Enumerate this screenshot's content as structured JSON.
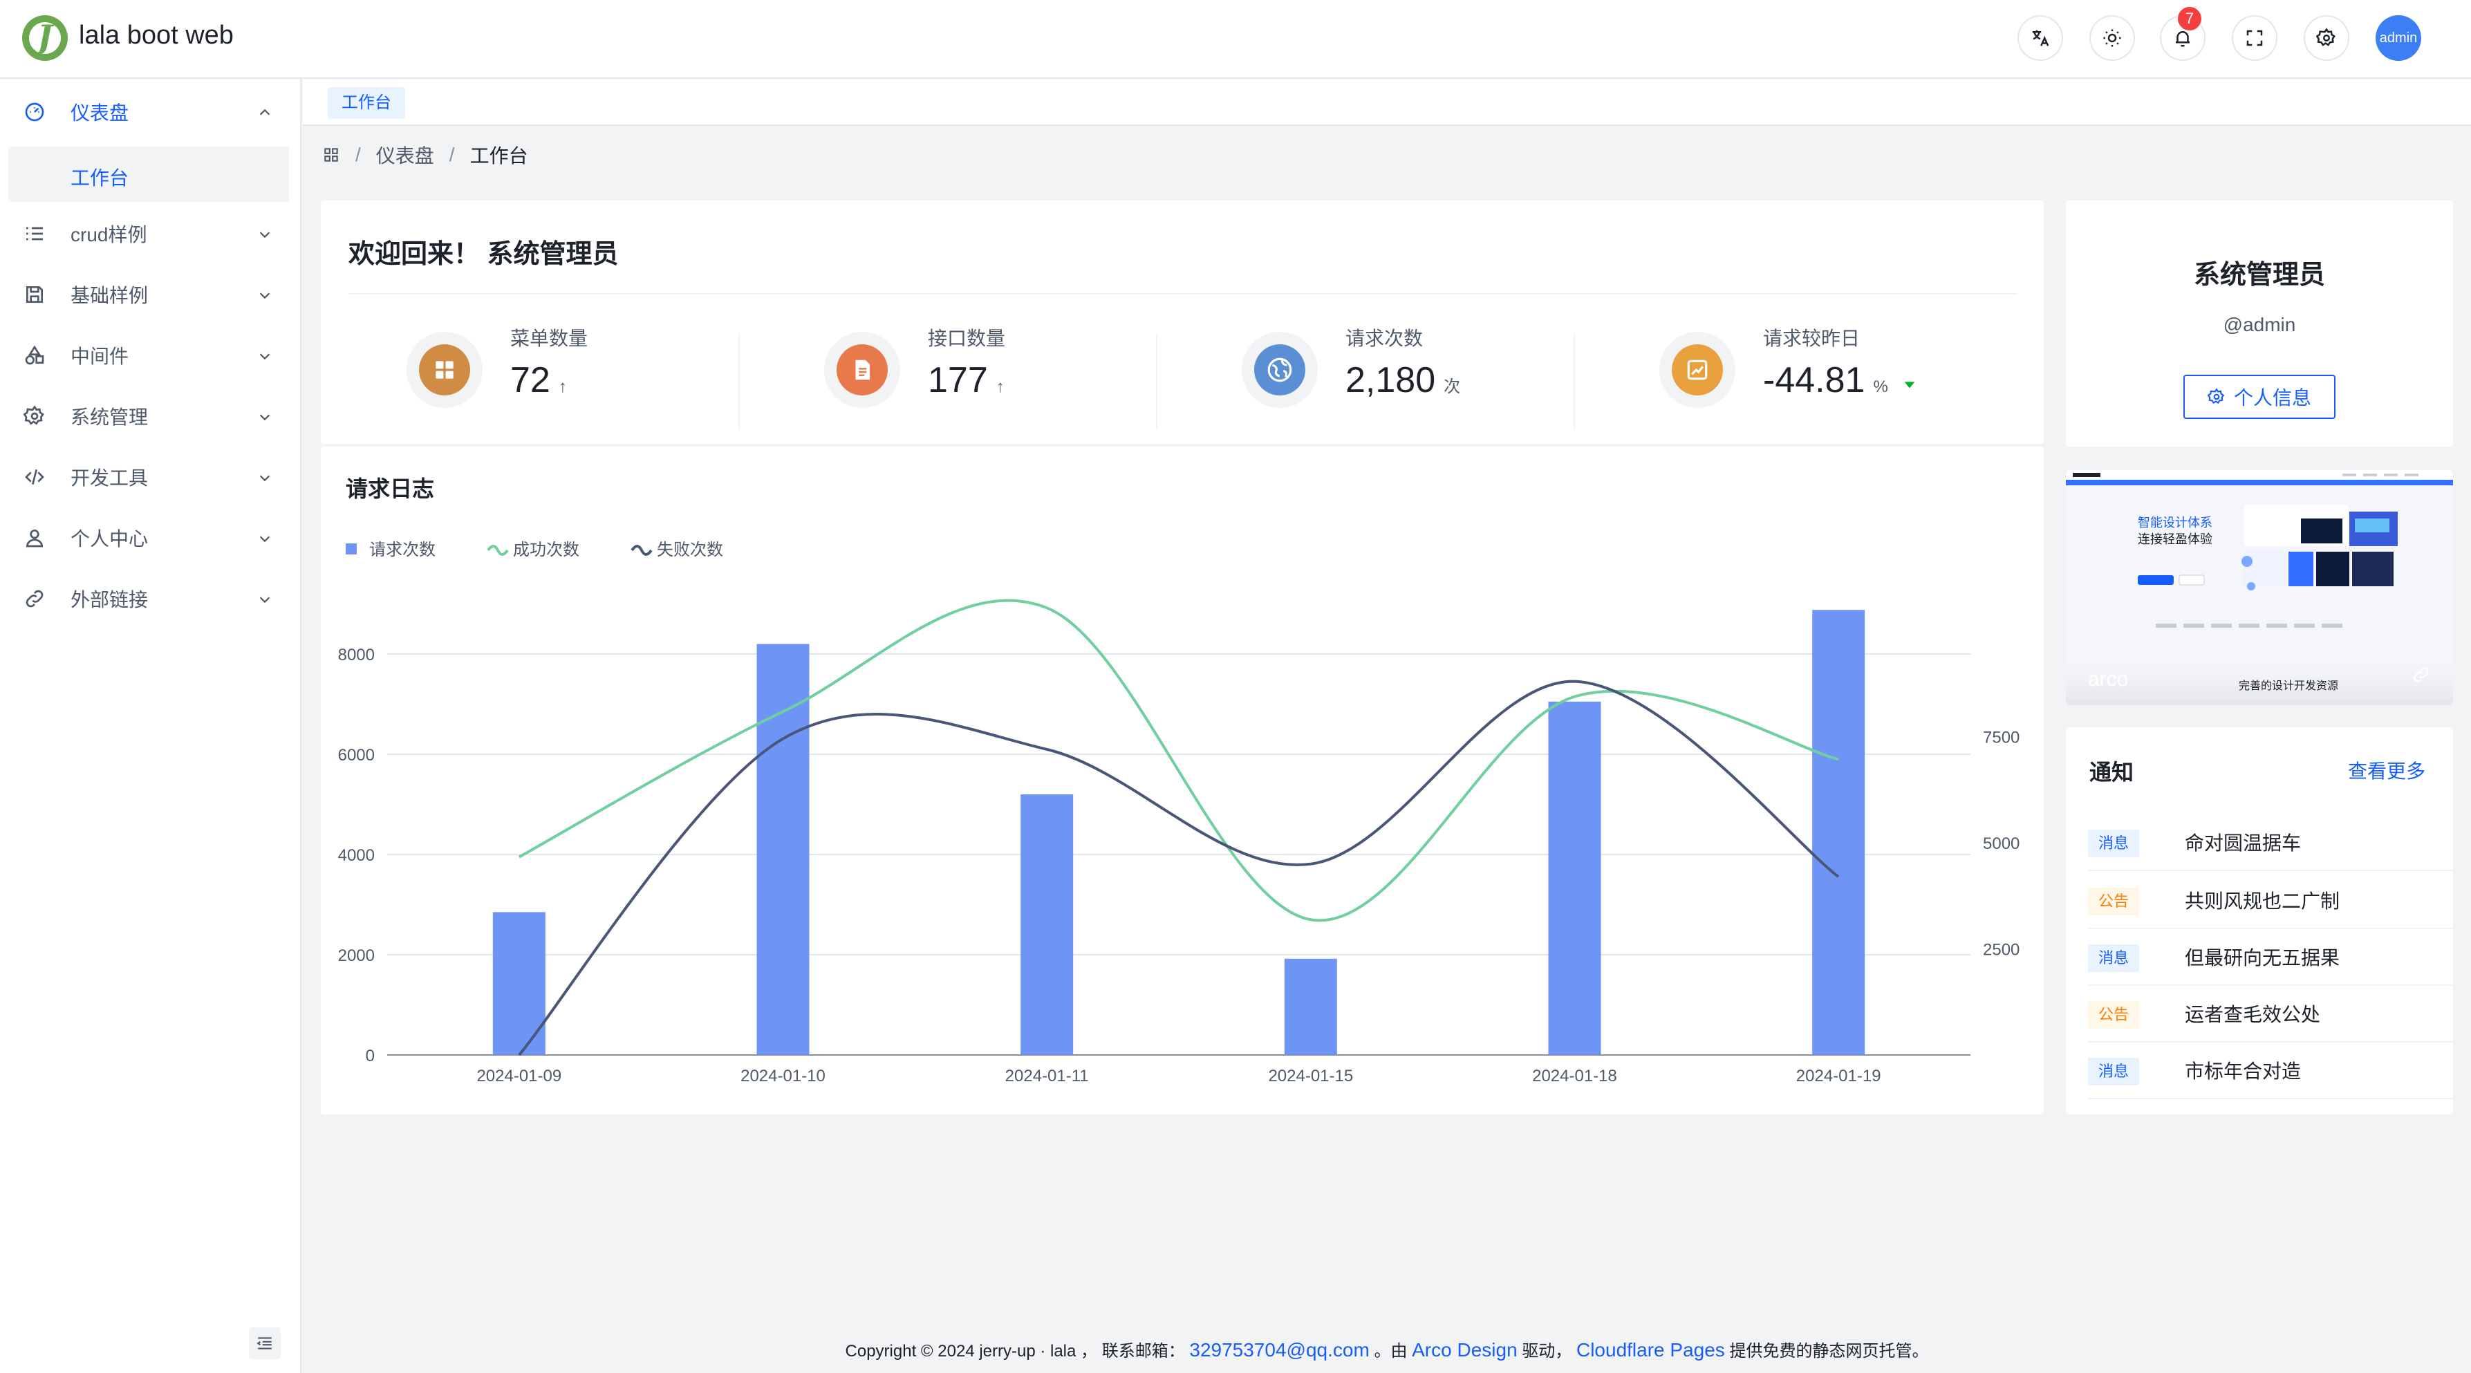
{
  "header": {
    "app_title": "lala boot web",
    "logo_letter": "J",
    "notification_count": "7",
    "avatar_text": "admin"
  },
  "sidebar": {
    "items": [
      {
        "label": "仪表盘",
        "icon": "dashboard-icon",
        "open": true,
        "children": [
          {
            "label": "工作台"
          }
        ]
      },
      {
        "label": "crud样例",
        "icon": "list-icon"
      },
      {
        "label": "基础样例",
        "icon": "save-icon"
      },
      {
        "label": "中间件",
        "icon": "shapes-icon"
      },
      {
        "label": "系统管理",
        "icon": "gear-icon"
      },
      {
        "label": "开发工具",
        "icon": "code-icon"
      },
      {
        "label": "个人中心",
        "icon": "user-icon"
      },
      {
        "label": "外部链接",
        "icon": "link-icon"
      }
    ]
  },
  "tabs": [
    {
      "label": "工作台"
    }
  ],
  "breadcrumb": {
    "items": [
      "仪表盘",
      "工作台"
    ]
  },
  "welcome": {
    "title": "欢迎回来！ 系统管理员",
    "stats": [
      {
        "label": "菜单数量",
        "value": "72",
        "unit": "↑",
        "color": "#d08b45"
      },
      {
        "label": "接口数量",
        "value": "177",
        "unit": "↑",
        "color": "#e8794a"
      },
      {
        "label": "请求次数",
        "value": "2,180",
        "unit": "次",
        "color": "#5a8fd6"
      },
      {
        "label": "请求较昨日",
        "value": "-44.81",
        "unit": "%",
        "color": "#e8a13c"
      }
    ]
  },
  "chart_data": {
    "type": "bar",
    "title": "请求日志",
    "categories": [
      "2024-01-09",
      "2024-01-10",
      "2024-01-11",
      "2024-01-15",
      "2024-01-18",
      "2024-01-19"
    ],
    "series": [
      {
        "name": "请求次数",
        "type": "bar",
        "axis": "left",
        "color": "#6e95f5",
        "values": [
          2850,
          8200,
          5200,
          1920,
          7050,
          8880
        ]
      },
      {
        "name": "成功次数",
        "type": "line",
        "axis": "left",
        "color": "#6fcf9f",
        "values": [
          3950,
          6850,
          8920,
          2700,
          7150,
          5900
        ]
      },
      {
        "name": "失败次数",
        "type": "line",
        "axis": "right",
        "color": "#4a5678",
        "values": [
          0,
          7450,
          7200,
          4500,
          8800,
          4200
        ]
      }
    ],
    "y_left": {
      "range": [
        0,
        8000
      ],
      "ticks": [
        "0",
        "2000",
        "4000",
        "6000",
        "8000"
      ]
    },
    "y_right": {
      "range": [
        0,
        10000
      ],
      "ticks": [
        "2500",
        "5000",
        "7500"
      ]
    },
    "legend": "top-left",
    "grid": true
  },
  "profile": {
    "name": "系统管理员",
    "handle": "@admin",
    "button_label": "个人信息"
  },
  "banner": {
    "headline": "智能设计体系",
    "subline": "连接轻盈体验",
    "brand": "arco",
    "caption": "完善的设计开发资源"
  },
  "notices": {
    "title": "通知",
    "more_label": "查看更多",
    "items": [
      {
        "tag": "消息",
        "kind": "msg",
        "text": "命对圆温据车"
      },
      {
        "tag": "公告",
        "kind": "ann",
        "text": "共则风规也二广制"
      },
      {
        "tag": "消息",
        "kind": "msg",
        "text": "但最研向无五据果"
      },
      {
        "tag": "公告",
        "kind": "ann",
        "text": "运者查毛效公处"
      },
      {
        "tag": "消息",
        "kind": "msg",
        "text": "市标年合对造"
      }
    ]
  },
  "footer": {
    "prefix": "Copyright © 2024 jerry-up · lala ，  联系邮箱：",
    "email": "329753704@qq.com",
    "mid1": "。由",
    "arco": "Arco Design",
    "mid2": "驱动，",
    "cf": "Cloudflare Pages",
    "suffix": "提供免费的静态网页托管。"
  }
}
